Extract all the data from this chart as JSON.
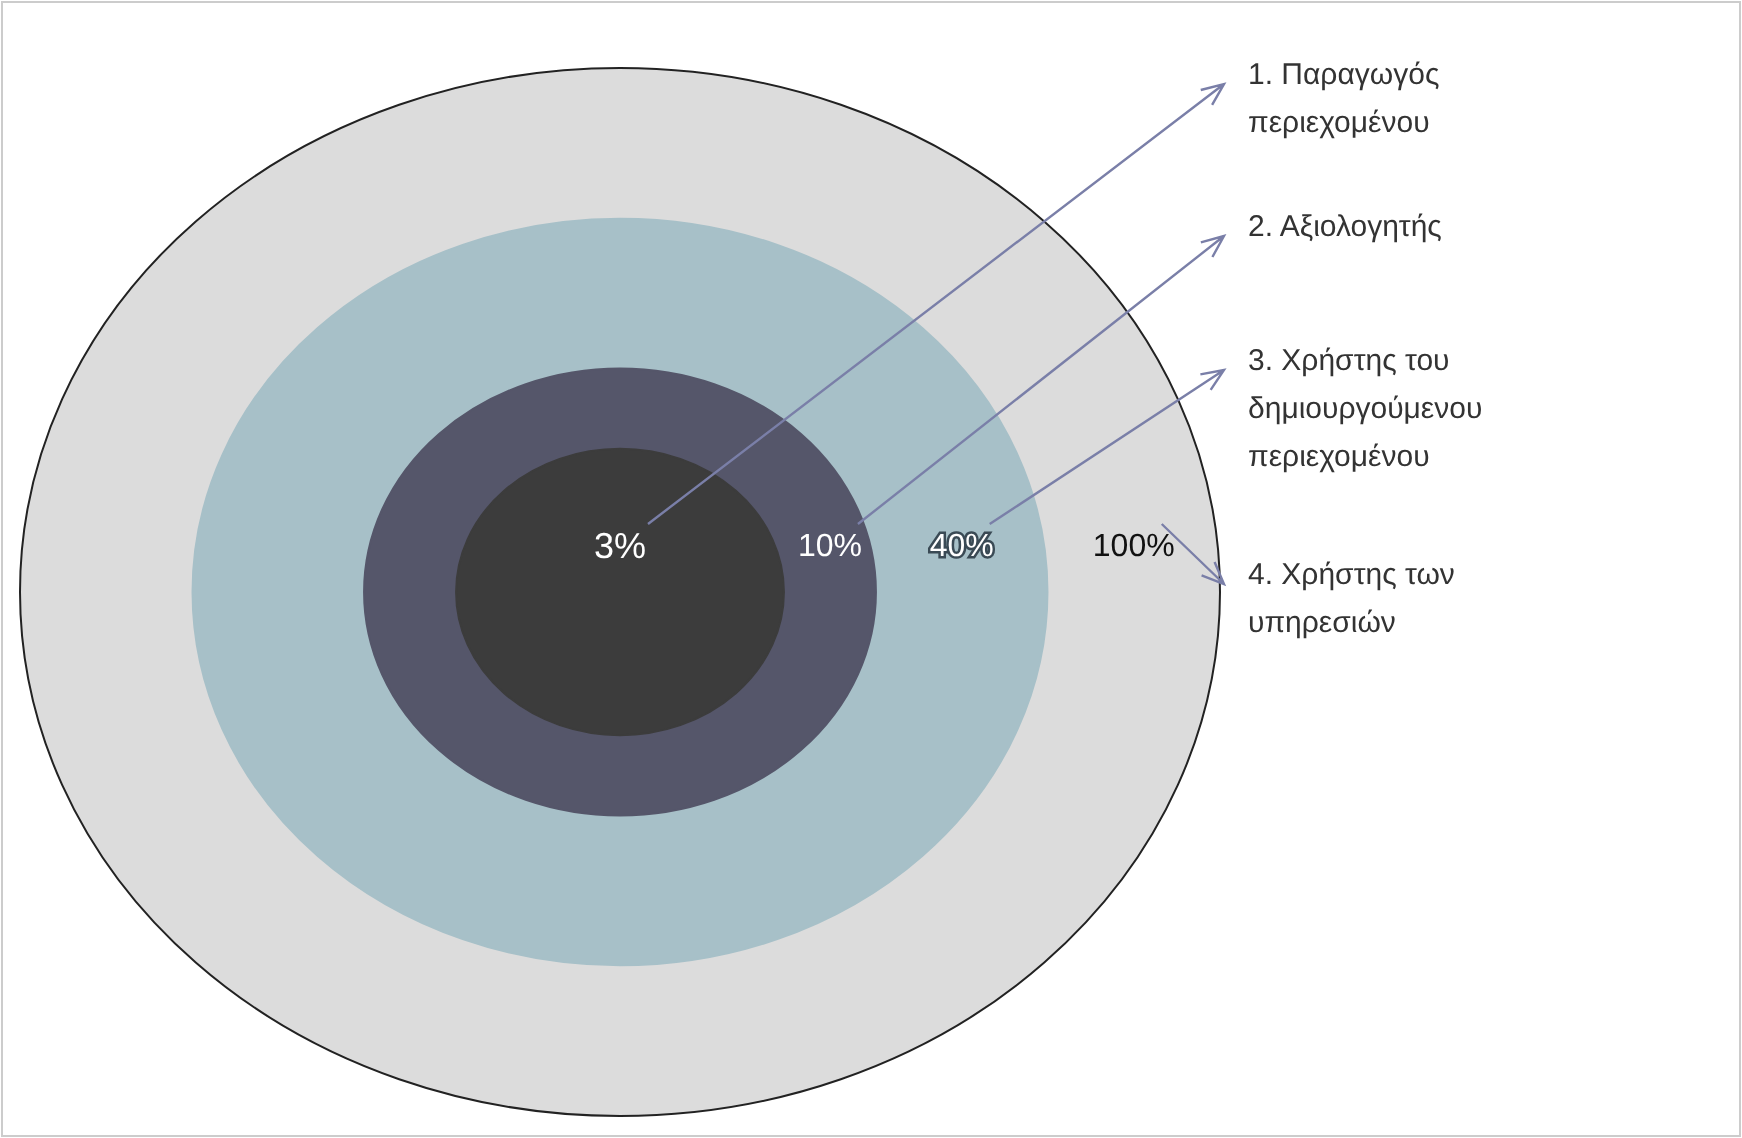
{
  "chart_data": {
    "type": "other",
    "annotations": [
      "1. Παραγωγός\nπεριεχομένου",
      "2. Αξιολογητής",
      "3. Χρήστης  του\nδημιουργούμενου\nπεριεχομένου",
      "4. Χρήστης των\nυπηρεσιών"
    ],
    "values": [
      3,
      10,
      40,
      100
    ],
    "value_labels": [
      "3%",
      "10%",
      "40%",
      "100%"
    ],
    "colors": [
      "#3c3c3c",
      "#55566a",
      "#a7c0c8",
      "#dcdcdc"
    ]
  }
}
